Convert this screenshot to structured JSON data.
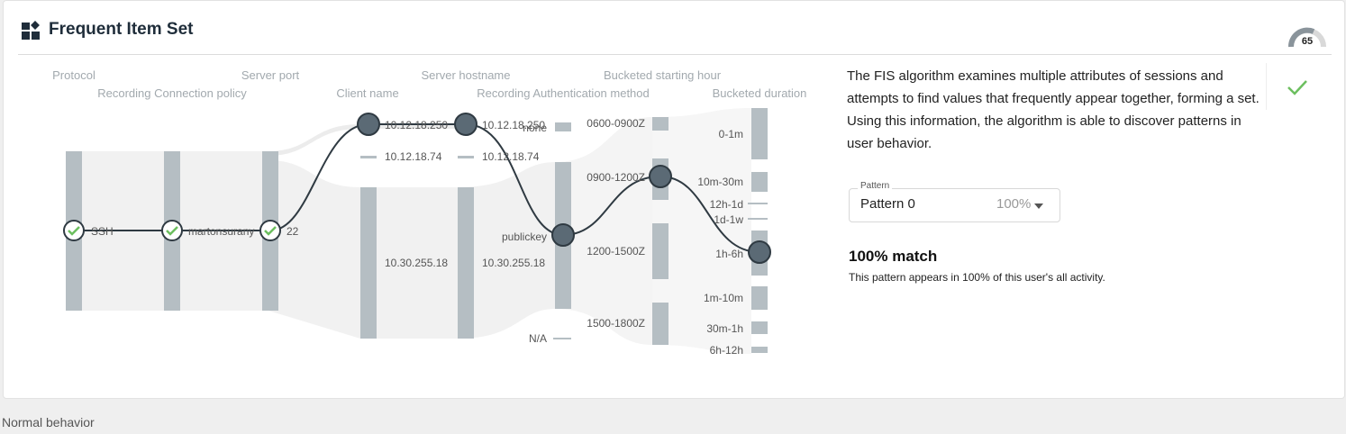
{
  "card": {
    "title": "Frequent Item Set",
    "score": "65",
    "icon": "dashboard-widgets-icon"
  },
  "sankey": {
    "column_headers": [
      "Protocol",
      "Recording Connection policy",
      "Server port",
      "Client name",
      "Server hostname",
      "Recording Authentication method",
      "Bucketed starting hour",
      "Bucketed duration"
    ],
    "node_labels": {
      "protocol": [
        "SSH"
      ],
      "policy": [
        "martonsurany"
      ],
      "port": [
        "22"
      ],
      "client": [
        "10.12.18.250",
        "10.12.18.74",
        "10.30.255.18"
      ],
      "hostname": [
        "10.12.18.250",
        "10.12.18.74",
        "10.30.255.18"
      ],
      "auth": [
        "none",
        "publickey",
        "N/A"
      ],
      "hour": [
        "0600-0900Z",
        "0900-1200Z",
        "1200-1500Z",
        "1500-1800Z"
      ],
      "duration": [
        "0-1m",
        "10m-30m",
        "12h-1d",
        "1d-1w",
        "1h-6h",
        "1m-10m",
        "30m-1h",
        "6h-12h"
      ]
    },
    "selected_path": [
      "SSH",
      "martonsurany",
      "22",
      "10.12.18.250",
      "10.12.18.250",
      "publickey",
      "0900-1200Z",
      "1h-6h"
    ]
  },
  "description": "The FIS algorithm examines multiple attributes of sessions and attempts to find values that frequently appear together, forming a set. Using this information, the algorithm is able to discover patterns in user behavior.",
  "pattern": {
    "label": "Pattern",
    "value": "Pattern 0",
    "percent": "100%"
  },
  "match": {
    "title": "100% match",
    "subtitle": "This pattern appears in 100% of this user's all activity."
  },
  "footer": {
    "label": "Normal behavior"
  },
  "colors": {
    "bar": "#b5bec3",
    "node": "#5b6a75",
    "check": "#6cbf5f",
    "flow": "#f1f1f1"
  }
}
